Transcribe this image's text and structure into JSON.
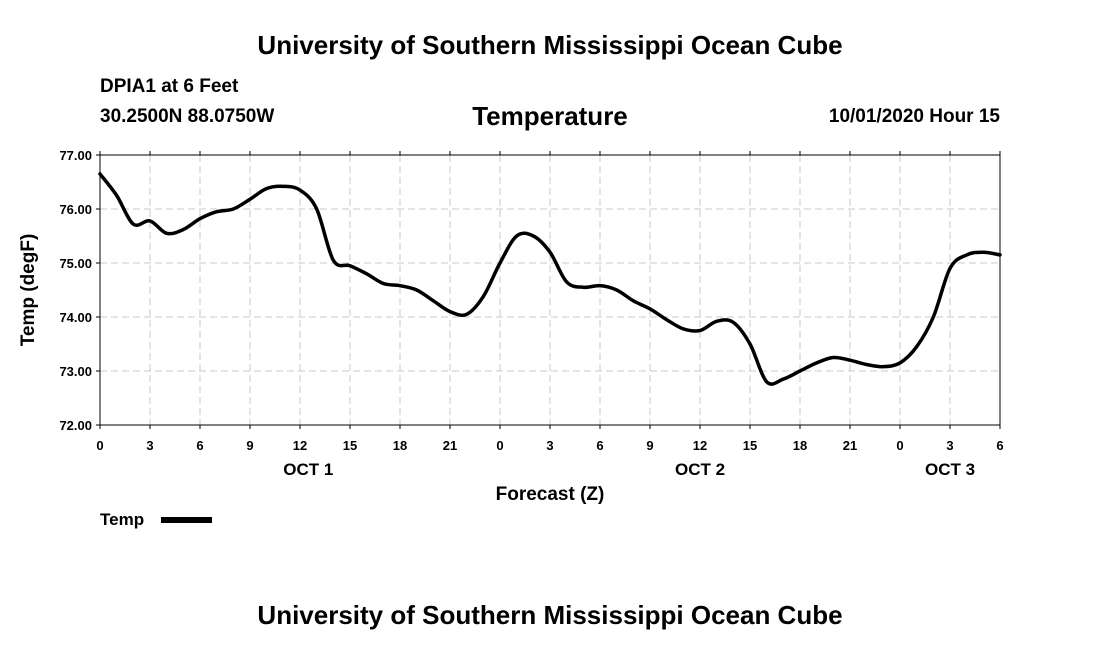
{
  "header": {
    "title": "University of Southern Mississippi Ocean Cube",
    "station": "DPIA1 at 6 Feet",
    "coords": "30.2500N 88.0750W",
    "datetime": "10/01/2020 Hour 15"
  },
  "footer": {
    "title": "University of Southern Mississippi Ocean Cube"
  },
  "legend": {
    "label": "Temp"
  },
  "chart_data": {
    "type": "line",
    "title": "Temperature",
    "xlabel": "Forecast (Z)",
    "ylabel": "Temp (degF)",
    "ylim": [
      72.0,
      77.0
    ],
    "xlim": [
      0,
      54
    ],
    "grid": true,
    "ytick_labels": [
      "72.00",
      "73.00",
      "74.00",
      "75.00",
      "76.00",
      "77.00"
    ],
    "ytick_values": [
      72,
      73,
      74,
      75,
      76,
      77
    ],
    "xtick_labels": [
      "0",
      "3",
      "6",
      "9",
      "12",
      "15",
      "18",
      "21",
      "0",
      "3",
      "6",
      "9",
      "12",
      "15",
      "18",
      "21",
      "0",
      "3",
      "6"
    ],
    "day_labels": [
      {
        "label": "OCT 1",
        "hour": 12.5
      },
      {
        "label": "OCT 2",
        "hour": 36.0
      },
      {
        "label": "OCT 3",
        "hour": 51.0
      }
    ],
    "series": [
      {
        "name": "Temp",
        "x": [
          0,
          1,
          2,
          3,
          4,
          5,
          6,
          7,
          8,
          9,
          10,
          11,
          12,
          13,
          14,
          15,
          16,
          17,
          18,
          19,
          20,
          21,
          22,
          23,
          24,
          25,
          26,
          27,
          28,
          29,
          30,
          31,
          32,
          33,
          34,
          35,
          36,
          37,
          38,
          39,
          40,
          41,
          42,
          43,
          44,
          45,
          46,
          47,
          48,
          49,
          50,
          51,
          52,
          53,
          54
        ],
        "values": [
          76.65,
          76.25,
          75.72,
          75.78,
          75.55,
          75.62,
          75.82,
          75.95,
          76.0,
          76.18,
          76.38,
          76.42,
          76.35,
          76.0,
          75.05,
          74.95,
          74.8,
          74.62,
          74.58,
          74.5,
          74.3,
          74.1,
          74.05,
          74.38,
          75.0,
          75.5,
          75.5,
          75.2,
          74.65,
          74.55,
          74.58,
          74.5,
          74.3,
          74.15,
          73.95,
          73.78,
          73.75,
          73.92,
          73.9,
          73.5,
          72.8,
          72.85,
          73.0,
          73.15,
          73.25,
          73.2,
          73.12,
          73.08,
          73.15,
          73.45,
          74.0,
          74.9,
          75.15,
          75.2,
          75.15
        ]
      }
    ]
  }
}
